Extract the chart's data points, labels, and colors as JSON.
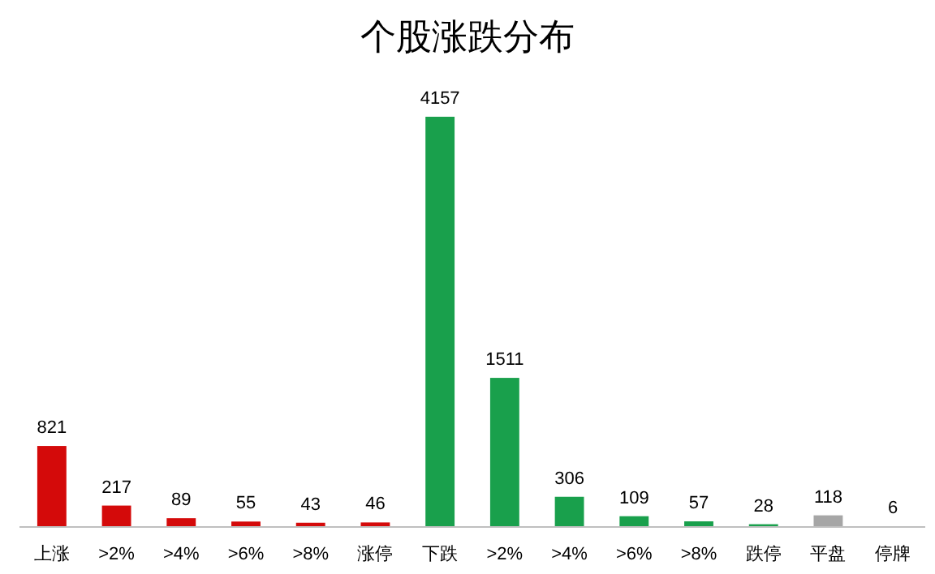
{
  "chart_data": {
    "type": "bar",
    "title": "个股涨跌分布",
    "categories": [
      "上涨",
      ">2%",
      ">4%",
      ">6%",
      ">8%",
      "涨停",
      "下跌",
      ">2%",
      ">4%",
      ">6%",
      ">8%",
      "跌停",
      "平盘",
      "停牌"
    ],
    "values": [
      821,
      217,
      89,
      55,
      43,
      46,
      4157,
      1511,
      306,
      109,
      57,
      28,
      118,
      6
    ],
    "colors": [
      "#d40a0a",
      "#d40a0a",
      "#d40a0a",
      "#d40a0a",
      "#d40a0a",
      "#d40a0a",
      "#19a04c",
      "#19a04c",
      "#19a04c",
      "#19a04c",
      "#19a04c",
      "#19a04c",
      "#a6a6a6",
      "#a6a6a6"
    ],
    "data_labels": true
  }
}
